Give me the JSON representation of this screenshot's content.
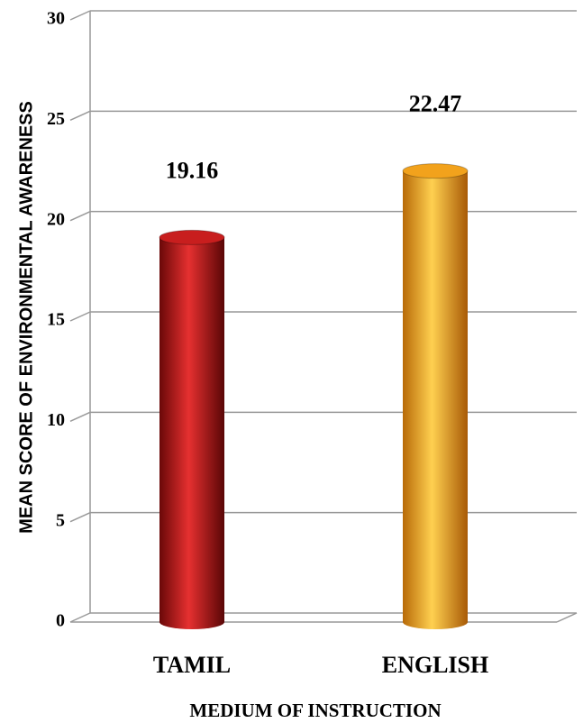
{
  "chart_data": {
    "type": "bar",
    "x_label": "MEDIUM OF INSTRUCTION",
    "y_label": "MEAN SCORE OF ENVIRONMENTAL AWARENESS",
    "categories": [
      "TAMIL",
      "ENGLISH"
    ],
    "series": [
      {
        "name": null,
        "colors": [
          "#c81e1e",
          "#f2a21c"
        ],
        "values": [
          19.16,
          22.47
        ]
      }
    ],
    "ylim": [
      0,
      30
    ],
    "yticks": [
      0,
      5,
      10,
      15,
      20,
      25,
      30
    ],
    "grid": true
  }
}
